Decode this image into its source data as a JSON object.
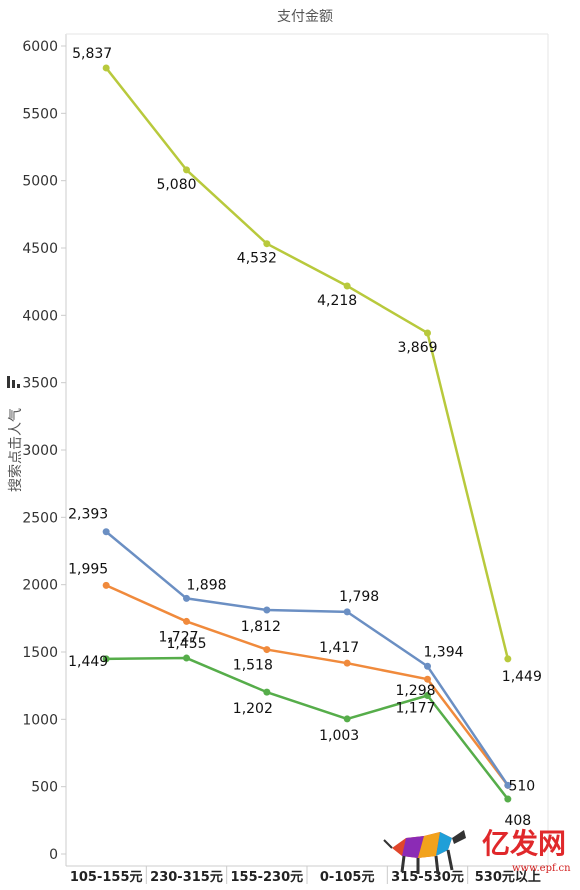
{
  "colors": {
    "series_1": "#b8c93c",
    "series_2": "#6b8fc3",
    "series_3": "#f08a3c",
    "series_4": "#56ad4a",
    "axis": "#cccccc",
    "grid": "#e6e6e6"
  },
  "chart_data": {
    "type": "line",
    "title": "支付金额",
    "ylabel": "搜索点击人气",
    "xlabel": "",
    "ylim": [
      0,
      6000
    ],
    "yticks": [
      0,
      500,
      1000,
      1500,
      2000,
      2500,
      3000,
      3500,
      4000,
      4500,
      5000,
      5500,
      6000
    ],
    "categories": [
      "105-155元",
      "230-315元",
      "155-230元",
      "0-105元",
      "315-530元",
      "530元以上"
    ],
    "grid": false,
    "series": [
      {
        "values": [
          5837,
          5080,
          4532,
          4218,
          3869,
          1449
        ],
        "labels": [
          "5,837",
          "5,080",
          "4,532",
          "4,218",
          "3,869",
          "1,449"
        ]
      },
      {
        "values": [
          2393,
          1898,
          1812,
          1798,
          1394,
          510
        ],
        "labels": [
          "2,393",
          "1,898",
          "1,812",
          "1,798",
          "1,394",
          "510"
        ]
      },
      {
        "values": [
          1995,
          1727,
          1518,
          1417,
          1298,
          510
        ],
        "labels": [
          "1,995",
          "1,727",
          "1,518",
          "1,417",
          "1,298",
          ""
        ]
      },
      {
        "values": [
          1449,
          1455,
          1202,
          1003,
          1177,
          408
        ],
        "labels": [
          "1,449",
          "1,455",
          "1,202",
          "1,003",
          "1,177",
          "408"
        ]
      }
    ]
  },
  "watermark": {
    "brand": "亿发网",
    "url": "www.epf.cn",
    "icon": "bull-logo-icon"
  }
}
